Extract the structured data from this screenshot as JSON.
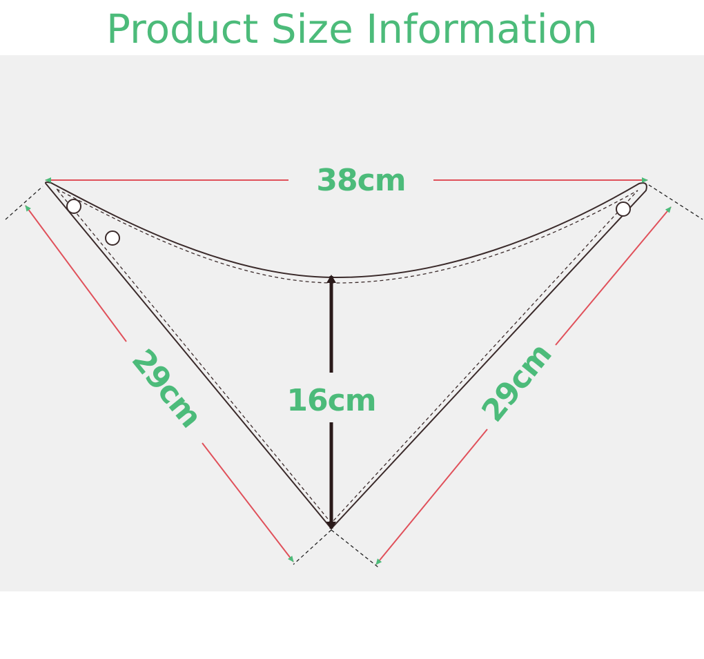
{
  "title": "Product Size Information",
  "colors": {
    "title": "#4cbb7a",
    "label": "#4cbb7a",
    "panel_bg": "#f0f0f0",
    "outline": "#3a2a2a",
    "dim_line": "#e0505a",
    "arrow_head": "#4cbb7a",
    "height_arrow": "#2a1a1a"
  },
  "dimensions": {
    "top_width": "38cm",
    "left_side": "29cm",
    "right_side": "29cm",
    "height": "16cm"
  },
  "icons": [
    "snap-button-icon",
    "snap-button-icon",
    "snap-button-icon"
  ]
}
